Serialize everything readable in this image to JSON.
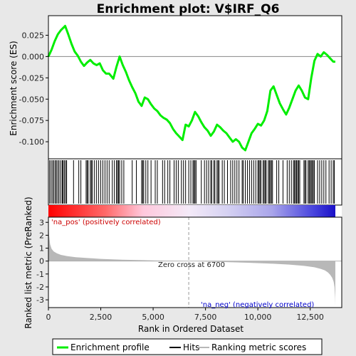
{
  "chart_data": {
    "type": "line",
    "title": "Enrichment plot: V$IRF_Q6",
    "xlabel": "Rank in Ordered Dataset",
    "panels": {
      "enrichment": {
        "ylabel": "Enrichment score (ES)",
        "ylim": [
          -0.12,
          0.048
        ],
        "yticks": [
          "0.025",
          "0.000",
          "-0.025",
          "-0.050",
          "-0.075",
          "-0.100"
        ],
        "ytick_values": [
          0.025,
          0.0,
          -0.025,
          -0.05,
          -0.075,
          -0.1
        ],
        "series": [
          {
            "name": "Enrichment profile",
            "color": "#00ee00",
            "x": [
              0,
              150,
              300,
              450,
              600,
              800,
              950,
              1100,
              1250,
              1400,
              1550,
              1700,
              1850,
              2000,
              2150,
              2300,
              2450,
              2600,
              2750,
              2900,
              3100,
              3250,
              3400,
              3550,
              3700,
              3850,
              4000,
              4150,
              4300,
              4450,
              4600,
              4750,
              4900,
              5050,
              5200,
              5350,
              5500,
              5650,
              5800,
              5950,
              6100,
              6250,
              6400,
              6550,
              6700,
              6850,
              7000,
              7150,
              7300,
              7450,
              7600,
              7750,
              7900,
              8050,
              8200,
              8350,
              8500,
              8650,
              8800,
              8950,
              9100,
              9250,
              9400,
              9550,
              9700,
              9850,
              10000,
              10150,
              10300,
              10450,
              10600,
              10750,
              10900,
              11050,
              11200,
              11350,
              11500,
              11650,
              11800,
              11950,
              12100,
              12250,
              12400,
              12550,
              12700,
              12850,
              13000,
              13150,
              13300,
              13450,
              13600,
              13700
            ],
            "y": [
              0.0,
              0.008,
              0.018,
              0.026,
              0.031,
              0.036,
              0.026,
              0.015,
              0.006,
              0.001,
              -0.006,
              -0.011,
              -0.007,
              -0.004,
              -0.008,
              -0.01,
              -0.008,
              -0.016,
              -0.02,
              -0.02,
              -0.026,
              -0.012,
              0.0,
              -0.01,
              -0.018,
              -0.028,
              -0.036,
              -0.043,
              -0.053,
              -0.058,
              -0.048,
              -0.05,
              -0.056,
              -0.061,
              -0.064,
              -0.069,
              -0.072,
              -0.074,
              -0.078,
              -0.085,
              -0.09,
              -0.094,
              -0.098,
              -0.08,
              -0.082,
              -0.075,
              -0.065,
              -0.07,
              -0.077,
              -0.083,
              -0.087,
              -0.093,
              -0.088,
              -0.08,
              -0.083,
              -0.087,
              -0.09,
              -0.095,
              -0.1,
              -0.097,
              -0.1,
              -0.107,
              -0.11,
              -0.1,
              -0.09,
              -0.085,
              -0.079,
              -0.081,
              -0.075,
              -0.064,
              -0.04,
              -0.035,
              -0.045,
              -0.055,
              -0.062,
              -0.068,
              -0.06,
              -0.05,
              -0.04,
              -0.034,
              -0.04,
              -0.048,
              -0.05,
              -0.025,
              -0.005,
              0.003,
              0.0,
              0.005,
              0.002,
              -0.002,
              -0.006,
              -0.006
            ]
          }
        ]
      },
      "hits": {
        "legend_label": "Hits",
        "ranks": [
          0,
          60,
          130,
          200,
          260,
          330,
          380,
          450,
          510,
          590,
          660,
          700,
          760,
          820,
          870,
          1200,
          1450,
          1550,
          1800,
          1850,
          1900,
          2000,
          2050,
          2100,
          2200,
          2300,
          2400,
          2500,
          2600,
          2700,
          2800,
          2900,
          3050,
          3150,
          3250,
          3300,
          3350,
          3400,
          3500,
          3600,
          4000,
          4200,
          4450,
          4500,
          4550,
          4650,
          4750,
          4900,
          5100,
          5200,
          5450,
          5550,
          5700,
          5800,
          6000,
          6100,
          6200,
          6350,
          6450,
          6550,
          6700,
          6800,
          6900,
          6950,
          7000,
          7050,
          7300,
          7450,
          7550,
          7650,
          7750,
          7800,
          7900,
          7950,
          8050,
          8100,
          8150,
          8300,
          8400,
          8550,
          8700,
          8800,
          8900,
          9000,
          9100,
          9250,
          9300,
          9400,
          9500,
          9600,
          9700,
          9800,
          9900,
          10000,
          10050,
          10100,
          10150,
          10250,
          10300,
          10350,
          10400,
          10500,
          10550,
          10600,
          10650,
          10700,
          10900,
          11000,
          11200,
          11400,
          11500,
          11600,
          11700,
          11750,
          11800,
          11850,
          11900,
          11950,
          12000,
          12200,
          12250,
          12300,
          12400,
          12450,
          12500,
          12550,
          12600,
          12650,
          12700,
          12850,
          12950,
          13050,
          13150,
          13250,
          13400,
          13500,
          13600,
          13650
        ]
      },
      "ranked_metric": {
        "ylabel": "Ranked list metric (PreRanked)",
        "ylim": [
          -3.6,
          3.4
        ],
        "yticks": [
          "3",
          "2",
          "1",
          "0",
          "-1",
          "-2",
          "-3"
        ],
        "ytick_values": [
          3,
          2,
          1,
          0,
          -1,
          -2,
          -3
        ],
        "legend_label": "Ranking metric scores",
        "color": "#b8b8b8",
        "x": [
          0,
          30,
          80,
          150,
          250,
          400,
          600,
          900,
          1300,
          1800,
          2500,
          3500,
          4500,
          5500,
          6700,
          7500,
          8500,
          9500,
          10500,
          11500,
          12200,
          12700,
          13000,
          13200,
          13350,
          13450,
          13550,
          13620,
          13660,
          13690,
          13700
        ],
        "y": [
          3.2,
          2.0,
          1.3,
          0.95,
          0.75,
          0.6,
          0.48,
          0.38,
          0.3,
          0.24,
          0.17,
          0.11,
          0.07,
          0.03,
          0.0,
          -0.04,
          -0.08,
          -0.13,
          -0.19,
          -0.27,
          -0.37,
          -0.48,
          -0.6,
          -0.72,
          -0.88,
          -1.05,
          -1.3,
          -1.6,
          -2.0,
          -2.8,
          -3.4
        ]
      }
    },
    "xlim": [
      0,
      13700
    ],
    "xticks": [
      "0",
      "2,500",
      "5,000",
      "7,500",
      "10,000",
      "12,500"
    ],
    "xtick_values": [
      0,
      2500,
      5000,
      7500,
      10000,
      12500
    ],
    "zero_cross": {
      "rank": 6700,
      "label": "Zero cross at 6700"
    },
    "annotations": {
      "pos": {
        "text": "'na_pos' (positively correlated)",
        "color": "#cc0000"
      },
      "neg": {
        "text": "'na_neg' (negatively correlated)",
        "color": "#0000cc"
      }
    },
    "legend": {
      "items": [
        "Enrichment profile",
        "Hits",
        "Ranking metric scores"
      ],
      "colors": [
        "#00ee00",
        "#000000",
        "#b8b8b8"
      ],
      "placement": "bottom"
    },
    "grid": false
  }
}
